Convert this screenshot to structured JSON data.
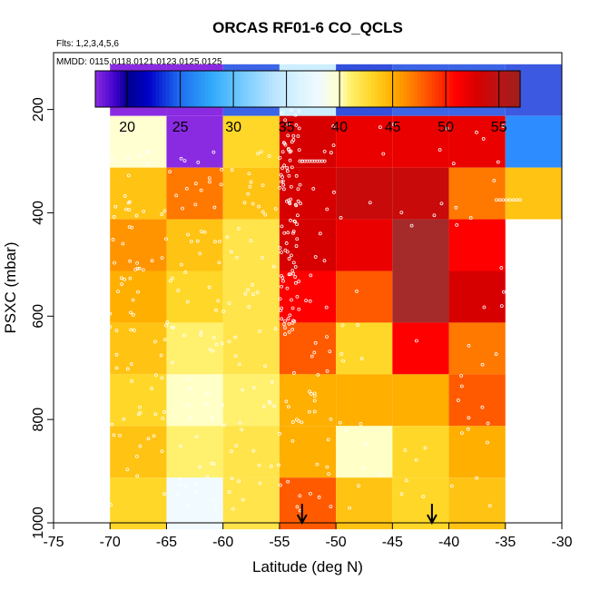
{
  "chart_data": {
    "type": "heatmap",
    "title": "ORCAS RF01-6 CO_QCLS",
    "subtitle_flights": "Flts: 1,2,3,4,5,6",
    "subtitle_dates": "MMDD: 0115,0118,0121,0123,0125,0125",
    "xlabel": "Latitude (deg N)",
    "ylabel": "PSXC (mbar)",
    "xlim": [
      -75,
      -30
    ],
    "ylim": [
      1000,
      90
    ],
    "x_ticks": [
      "-75",
      "-70",
      "-65",
      "-60",
      "-55",
      "-50",
      "-45",
      "-40",
      "-35",
      "-30"
    ],
    "x_tick_values": [
      -75,
      -70,
      -65,
      -60,
      -55,
      -50,
      -45,
      -40,
      -35,
      -30
    ],
    "y_ticks": [
      "200",
      "400",
      "600",
      "800",
      "1000"
    ],
    "y_tick_values": [
      200,
      400,
      600,
      800,
      1000
    ],
    "colorbar": {
      "range": [
        17,
        57
      ],
      "tick_labels": [
        "20",
        "25",
        "30",
        "35",
        "40",
        "45",
        "50",
        "55"
      ],
      "tick_values": [
        20,
        25,
        30,
        35,
        40,
        45,
        50,
        55
      ]
    },
    "lat_bins": [
      -70,
      -65,
      -60,
      -55,
      -50,
      -45,
      -40,
      -35
    ],
    "pres_bins": [
      112.5,
      212.5,
      312.5,
      412.5,
      512.5,
      612.5,
      712.5,
      812.5,
      912.5,
      1012.5
    ],
    "values": [
      [
        17,
        17,
        25,
        37,
        24,
        26,
        26,
        26
      ],
      [
        40,
        17,
        43,
        53,
        52,
        52,
        52,
        30
      ],
      [
        44,
        47,
        44,
        53,
        54,
        54,
        47,
        44
      ],
      [
        46,
        44,
        42,
        53,
        52,
        56,
        51,
        null
      ],
      [
        45,
        43,
        42,
        51,
        48,
        55,
        53,
        null
      ],
      [
        44,
        41,
        42,
        48,
        43,
        51,
        47,
        null
      ],
      [
        43,
        40,
        41,
        45,
        45,
        45,
        48,
        null
      ],
      [
        44,
        41,
        42,
        45,
        40,
        43,
        45,
        null
      ],
      [
        43,
        38,
        42,
        48,
        44,
        43,
        44,
        null
      ]
    ],
    "arrows_lat": [
      -53,
      -41.5
    ]
  }
}
